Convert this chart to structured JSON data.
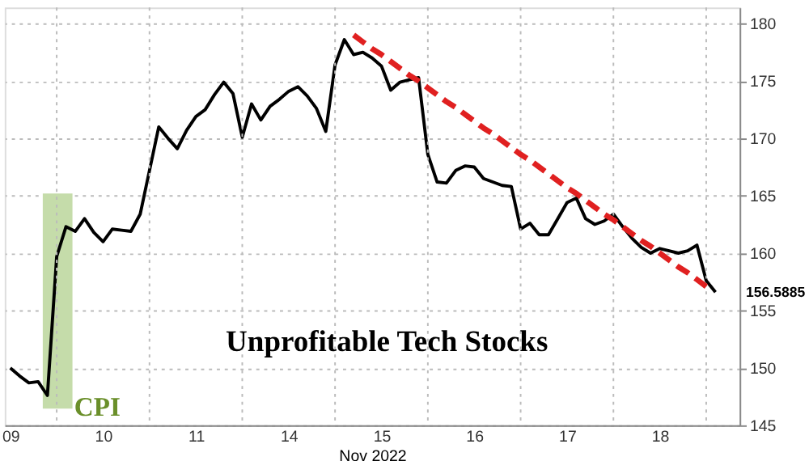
{
  "chart_data": {
    "type": "line",
    "xlabel": "Nov 2022",
    "categories": [
      "09",
      null,
      null,
      null,
      null,
      null,
      null,
      null,
      null,
      null,
      "10",
      null,
      null,
      null,
      null,
      null,
      null,
      null,
      null,
      null,
      "11",
      null,
      null,
      null,
      null,
      null,
      null,
      null,
      null,
      null,
      "14",
      null,
      null,
      null,
      null,
      null,
      null,
      null,
      null,
      null,
      "15",
      null,
      null,
      null,
      null,
      null,
      null,
      null,
      null,
      null,
      "16",
      null,
      null,
      null,
      null,
      null,
      null,
      null,
      null,
      null,
      "17",
      null,
      null,
      null,
      null,
      null,
      null,
      null,
      null,
      null,
      "18",
      null,
      null,
      null,
      null,
      null,
      null
    ],
    "ylim": [
      145,
      181.4
    ],
    "yticks": [
      145,
      150,
      155,
      160,
      165,
      170,
      175,
      180
    ],
    "grid": true,
    "series": [
      {
        "name": "Unprofitable Tech Stocks",
        "color": "#000000",
        "line_style": "solid",
        "values": [
          150.0,
          149.3,
          148.7,
          148.8,
          147.6,
          159.7,
          162.3,
          161.9,
          163.0,
          161.8,
          161.0,
          162.1,
          162.0,
          161.9,
          163.4,
          167.2,
          171.0,
          170.0,
          169.1,
          170.7,
          171.9,
          172.5,
          173.8,
          174.9,
          173.9,
          170.1,
          173.0,
          171.6,
          172.8,
          173.4,
          174.1,
          174.5,
          173.7,
          172.6,
          170.6,
          176.4,
          178.6,
          177.3,
          177.5,
          177.0,
          176.3,
          174.2,
          174.9,
          175.1,
          175.3,
          168.6,
          166.2,
          166.1,
          167.2,
          167.6,
          167.5,
          166.5,
          166.2,
          165.9,
          165.8,
          162.1,
          162.6,
          161.6,
          161.6,
          163.0,
          164.4,
          164.8,
          163.0,
          162.5,
          162.8,
          163.4,
          162.3,
          161.3,
          160.5,
          160.0,
          160.4,
          160.2,
          160.0,
          160.2,
          160.7,
          157.6,
          156.6
        ]
      },
      {
        "type": "line",
        "color": "#e02020",
        "line_style": "dashed",
        "values": [
          null,
          null,
          null,
          null,
          null,
          null,
          null,
          null,
          null,
          null,
          null,
          null,
          null,
          null,
          null,
          null,
          null,
          null,
          null,
          null,
          null,
          null,
          null,
          null,
          null,
          null,
          null,
          null,
          null,
          null,
          null,
          null,
          null,
          null,
          null,
          null,
          null,
          179.0,
          178.4,
          177.8,
          177.3,
          176.7,
          176.1,
          175.5,
          175.0,
          174.4,
          173.8,
          173.2,
          172.7,
          172.1,
          171.5,
          170.9,
          170.4,
          169.8,
          169.2,
          168.6,
          168.1,
          167.5,
          166.9,
          166.3,
          165.7,
          165.2,
          164.6,
          164.0,
          163.4,
          162.9,
          162.3,
          161.7,
          161.1,
          160.6,
          160.0,
          159.4,
          158.8,
          158.3,
          157.7,
          157.1,
          null
        ]
      }
    ],
    "annotations": [
      "CPI",
      "156.5885"
    ]
  }
}
